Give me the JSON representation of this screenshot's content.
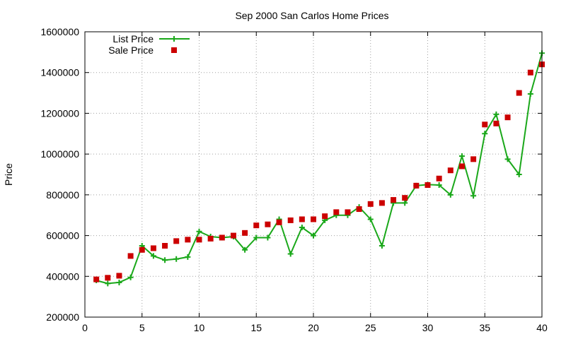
{
  "chart_data": {
    "type": "line",
    "title": "Sep 2000 San Carlos Home Prices",
    "xlabel": "",
    "ylabel": "Price",
    "xlim": [
      0,
      40
    ],
    "ylim": [
      200000,
      1600000
    ],
    "xticks": [
      0,
      5,
      10,
      15,
      20,
      25,
      30,
      35,
      40
    ],
    "yticks": [
      200000,
      400000,
      600000,
      800000,
      1000000,
      1200000,
      1400000,
      1600000
    ],
    "grid": true,
    "legend_position": "top-left",
    "series": [
      {
        "name": "List Price",
        "style": "linespoints",
        "color": "#1aa81a",
        "x": [
          1,
          2,
          3,
          4,
          5,
          6,
          7,
          8,
          9,
          10,
          11,
          12,
          13,
          14,
          15,
          16,
          17,
          18,
          19,
          20,
          21,
          22,
          23,
          24,
          25,
          26,
          27,
          28,
          29,
          30,
          31,
          32,
          33,
          34,
          35,
          36,
          37,
          38,
          39,
          40
        ],
        "y": [
          380000,
          365000,
          370000,
          395000,
          550000,
          500000,
          480000,
          485000,
          495000,
          620000,
          595000,
          590000,
          595000,
          530000,
          590000,
          590000,
          680000,
          510000,
          640000,
          600000,
          675000,
          700000,
          700000,
          740000,
          680000,
          550000,
          760000,
          760000,
          845000,
          850000,
          848000,
          800000,
          990000,
          795000,
          1100000,
          1195000,
          975000,
          900000,
          1295000,
          1495000
        ]
      },
      {
        "name": "Sale Price",
        "style": "points",
        "color": "#cc0000",
        "x": [
          1,
          2,
          3,
          4,
          5,
          6,
          7,
          8,
          9,
          10,
          11,
          12,
          13,
          14,
          15,
          16,
          17,
          18,
          19,
          20,
          21,
          22,
          23,
          24,
          25,
          26,
          27,
          28,
          29,
          30,
          31,
          32,
          33,
          34,
          35,
          36,
          37,
          38,
          39,
          40
        ],
        "y": [
          385000,
          393000,
          403000,
          500000,
          530000,
          538000,
          550000,
          573000,
          580000,
          580000,
          585000,
          590000,
          600000,
          613000,
          650000,
          655000,
          665000,
          675000,
          680000,
          680000,
          695000,
          715000,
          715000,
          730000,
          755000,
          760000,
          775000,
          785000,
          845000,
          848000,
          880000,
          920000,
          940000,
          975000,
          1145000,
          1150000,
          1180000,
          1300000,
          1400000,
          1440000
        ]
      }
    ]
  }
}
